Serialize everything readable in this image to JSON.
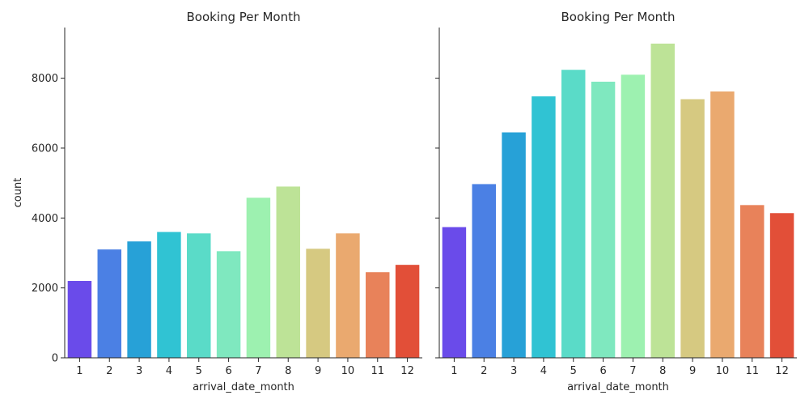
{
  "chart_data": [
    {
      "type": "bar",
      "title": "Booking Per Month",
      "xlabel": "arrival_date_month",
      "ylabel": "count",
      "categories": [
        "1",
        "2",
        "3",
        "4",
        "5",
        "6",
        "7",
        "8",
        "9",
        "10",
        "11",
        "12"
      ],
      "values": [
        2200,
        3100,
        3330,
        3600,
        3560,
        3050,
        4580,
        4900,
        3120,
        3560,
        2450,
        2660
      ],
      "ylim": [
        0,
        9450
      ],
      "yticks": [
        0,
        2000,
        4000,
        6000,
        8000
      ],
      "grid": false
    },
    {
      "type": "bar",
      "title": "Booking Per Month",
      "xlabel": "arrival_date_month",
      "ylabel": "",
      "categories": [
        "1",
        "2",
        "3",
        "4",
        "5",
        "6",
        "7",
        "8",
        "9",
        "10",
        "11",
        "12"
      ],
      "values": [
        3740,
        4970,
        6450,
        7480,
        8240,
        7900,
        8100,
        8990,
        7400,
        7620,
        4370,
        4140
      ],
      "ylim": [
        0,
        9450
      ],
      "yticks": [
        0,
        2000,
        4000,
        6000,
        8000
      ],
      "grid": false
    }
  ],
  "colors": [
    "#6a4bea",
    "#4b80e4",
    "#27a1d7",
    "#30c3d3",
    "#5adbc8",
    "#7fe8bf",
    "#9df1b0",
    "#bde397",
    "#d6c981",
    "#eaa96f",
    "#e8825a",
    "#e24f38"
  ]
}
